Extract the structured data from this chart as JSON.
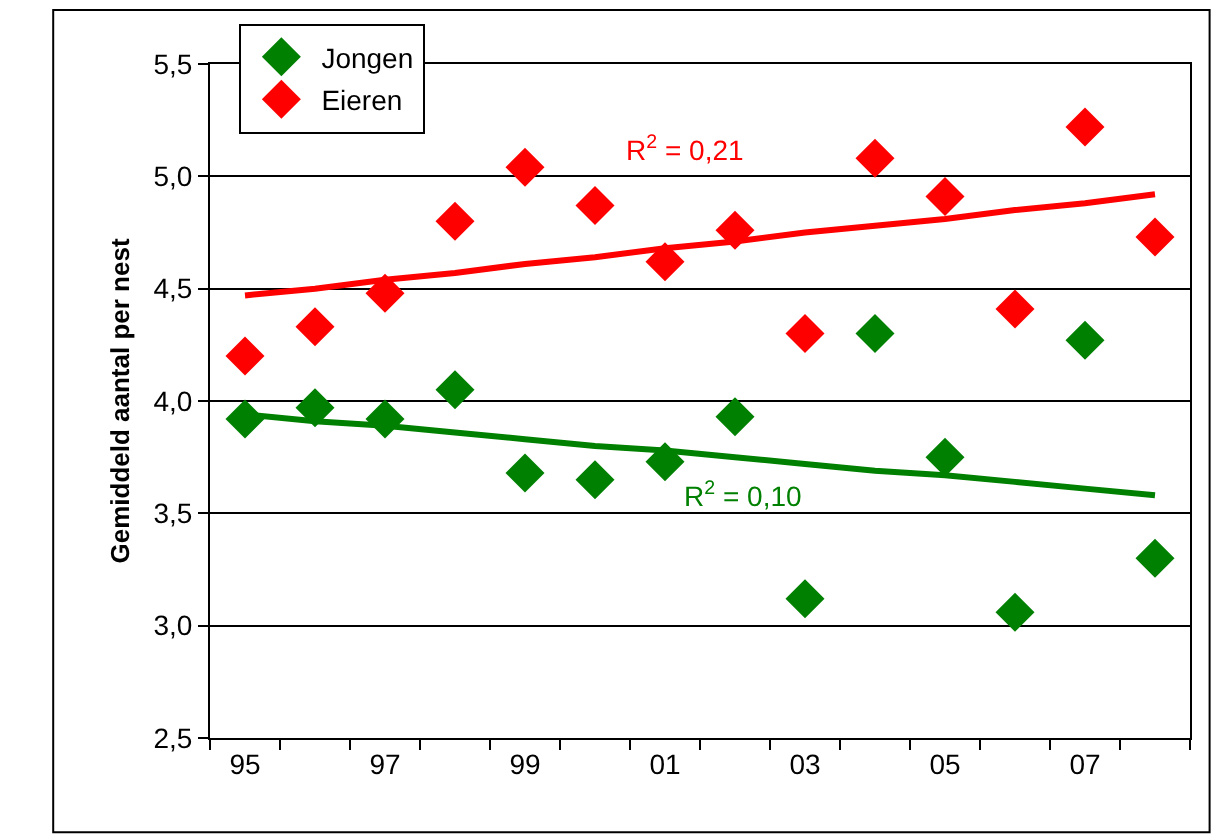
{
  "chart_data": {
    "type": "scatter",
    "ylabel": "Gemiddeld aantal per nest",
    "categories": [
      "95",
      null,
      "97",
      null,
      "99",
      null,
      "01",
      null,
      "03",
      null,
      "05",
      null,
      "07",
      null
    ],
    "series": [
      {
        "name": "Jongen",
        "marker": "diamond",
        "color": "#008000",
        "values": [
          3.92,
          3.97,
          3.92,
          4.05,
          3.68,
          3.65,
          3.73,
          3.93,
          3.12,
          4.3,
          3.75,
          3.06,
          4.27,
          3.3
        ]
      },
      {
        "name": "Eieren",
        "marker": "diamond",
        "color": "#ff0000",
        "values": [
          4.2,
          4.33,
          4.48,
          4.8,
          5.04,
          4.87,
          4.62,
          4.76,
          4.3,
          5.08,
          4.91,
          4.41,
          5.22,
          4.73
        ]
      },
      {
        "type": "line",
        "marker": "none",
        "color": "#ff0000",
        "values": [
          4.47,
          4.5,
          4.54,
          4.57,
          4.61,
          4.64,
          4.68,
          4.71,
          4.75,
          4.78,
          4.81,
          4.85,
          4.88,
          4.92
        ]
      },
      {
        "type": "line",
        "marker": "none",
        "color": "#008000",
        "values": [
          3.94,
          3.91,
          3.89,
          3.86,
          3.83,
          3.8,
          3.78,
          3.75,
          3.72,
          3.69,
          3.67,
          3.64,
          3.61,
          3.58
        ]
      }
    ],
    "ylim": [
      2.5,
      5.5
    ],
    "yticks": [
      {
        "value": 2.5,
        "label": "2,5"
      },
      {
        "value": 3.0,
        "label": "3,0"
      },
      {
        "value": 3.5,
        "label": "3,5"
      },
      {
        "value": 4.0,
        "label": "4,0"
      },
      {
        "value": 4.5,
        "label": "4,5"
      },
      {
        "value": 5.0,
        "label": "5,0"
      },
      {
        "value": 5.5,
        "label": "5,5"
      }
    ],
    "annotations": [
      "R$^{2}$ = 0,21",
      "R$^{2}$ = 0,10"
    ],
    "grid": "y",
    "legend": "top left"
  }
}
